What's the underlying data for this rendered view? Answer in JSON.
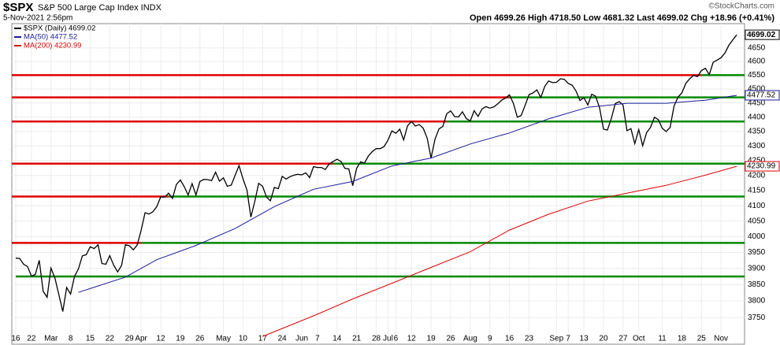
{
  "chart_data": {
    "type": "line",
    "title": "$SPX",
    "subtitle": "S&P 500 Large Cap Index INDX",
    "date": "5-Nov-2021 2:56pm",
    "quote": "Open 4699.26  High 4718.50  Low 4681.32  Last 4699.02  Chg +18.96 (+0.41%)",
    "credit": "©StockCharts.com",
    "log_scale": true,
    "grid": true,
    "xlim": [
      -1,
      186
    ],
    "ylim": [
      3671,
      4741
    ],
    "yticks": [
      3750,
      3800,
      3850,
      3900,
      3950,
      4000,
      4050,
      4100,
      4150,
      4200,
      4250,
      4300,
      4350,
      4400,
      4450,
      4500,
      4550,
      4600,
      4650
    ],
    "xticks": [
      {
        "value": 0,
        "label": "16"
      },
      {
        "value": 4,
        "label": "22"
      },
      {
        "value": 9,
        "label": "Mar"
      },
      {
        "value": 14,
        "label": "8"
      },
      {
        "value": 19,
        "label": "15"
      },
      {
        "value": 24,
        "label": "22"
      },
      {
        "value": 29,
        "label": "29"
      },
      {
        "value": 32,
        "label": "Apr"
      },
      {
        "value": 37,
        "label": "12"
      },
      {
        "value": 42,
        "label": "19"
      },
      {
        "value": 47,
        "label": "26"
      },
      {
        "value": 53,
        "label": "May"
      },
      {
        "value": 58,
        "label": "10"
      },
      {
        "value": 63,
        "label": "17"
      },
      {
        "value": 68,
        "label": "24"
      },
      {
        "value": 73,
        "label": "Jun"
      },
      {
        "value": 77,
        "label": "7"
      },
      {
        "value": 82,
        "label": "14"
      },
      {
        "value": 87,
        "label": "21"
      },
      {
        "value": 92,
        "label": "28"
      },
      {
        "value": 95,
        "label": "Jul"
      },
      {
        "value": 97,
        "label": "6"
      },
      {
        "value": 101,
        "label": "12"
      },
      {
        "value": 106,
        "label": "19"
      },
      {
        "value": 111,
        "label": "26"
      },
      {
        "value": 116,
        "label": "Aug"
      },
      {
        "value": 121,
        "label": "9"
      },
      {
        "value": 126,
        "label": "16"
      },
      {
        "value": 131,
        "label": "23"
      },
      {
        "value": 138,
        "label": "Sep"
      },
      {
        "value": 141,
        "label": "7"
      },
      {
        "value": 145,
        "label": "13"
      },
      {
        "value": 150,
        "label": "20"
      },
      {
        "value": 155,
        "label": "27"
      },
      {
        "value": 159,
        "label": "Oct"
      },
      {
        "value": 165,
        "label": "11"
      },
      {
        "value": 170,
        "label": "18"
      },
      {
        "value": 175,
        "label": "25"
      },
      {
        "value": 180,
        "label": "Nov"
      }
    ],
    "levels": [
      4550,
      4470,
      4385,
      4240,
      4130,
      3980,
      3875
    ],
    "level_colors": [
      "#e00000",
      "#008a00"
    ],
    "series": [
      {
        "name": "$SPX (Daily) 4699.02",
        "color": "#000000",
        "end_label": "4699.02",
        "values": [
          3932,
          3931,
          3913,
          3906,
          3876,
          3881,
          3925,
          3829,
          3811,
          3901,
          3870,
          3819,
          3768,
          3841,
          3821,
          3875,
          3898,
          3939,
          3943,
          3968,
          3962,
          3974,
          3915,
          3913,
          3940,
          3910,
          3889,
          3909,
          3974,
          3971,
          3958,
          3973,
          4020,
          4077,
          4073,
          4080,
          4097,
          4129,
          4128,
          4141,
          4124,
          4170,
          4185,
          4163,
          4135,
          4173,
          4135,
          4180,
          4187,
          4186,
          4183,
          4211,
          4181,
          4192,
          4164,
          4168,
          4201,
          4233,
          4189,
          4152,
          4063,
          4113,
          4174,
          4164,
          4128,
          4116,
          4160,
          4156,
          4197,
          4188,
          4196,
          4201,
          4204,
          4202,
          4209,
          4193,
          4230,
          4227,
          4227,
          4220,
          4239,
          4247,
          4255,
          4247,
          4224,
          4222,
          4166,
          4224,
          4246,
          4242,
          4266,
          4281,
          4291,
          4291,
          4298,
          4320,
          4352,
          4344,
          4358,
          4321,
          4370,
          4385,
          4369,
          4374,
          4361,
          4327,
          4259,
          4323,
          4359,
          4368,
          4412,
          4422,
          4402,
          4401,
          4419,
          4395,
          4387,
          4423,
          4403,
          4429,
          4437,
          4432,
          4436,
          4447,
          4460,
          4468,
          4479,
          4449,
          4400,
          4406,
          4442,
          4480,
          4486,
          4497,
          4470,
          4509,
          4529,
          4523,
          4524,
          4537,
          4535,
          4520,
          4514,
          4493,
          4459,
          4469,
          4443,
          4481,
          4474,
          4433,
          4358,
          4355,
          4395,
          4448,
          4455,
          4443,
          4353,
          4360,
          4308,
          4357,
          4301,
          4346,
          4364,
          4400,
          4391,
          4361,
          4350,
          4364,
          4439,
          4471,
          4486,
          4520,
          4537,
          4549,
          4545,
          4567,
          4575,
          4552,
          4597,
          4605,
          4614,
          4631,
          4660,
          4680,
          4699.02
        ]
      },
      {
        "name": "MA(50) 4477.52",
        "color": "#1a1a9a",
        "end_label": "4477.52",
        "x": [
          16,
          28,
          36,
          46,
          56,
          66,
          76,
          86,
          96,
          106,
          116,
          126,
          136,
          146,
          156,
          166,
          176,
          184
        ],
        "values": [
          3826,
          3873,
          3927,
          3972,
          4026,
          4097,
          4154,
          4180,
          4232,
          4259,
          4307,
          4345,
          4394,
          4435,
          4449,
          4449,
          4460,
          4477.52
        ]
      },
      {
        "name": "MA(200) 4230.99",
        "color": "#e00000",
        "end_label": "4230.99",
        "x": [
          63,
          76,
          86,
          96,
          106,
          116,
          126,
          136,
          146,
          156,
          166,
          176,
          184
        ],
        "values": [
          3694,
          3755,
          3806,
          3854,
          3903,
          3952,
          4021,
          4072,
          4115,
          4141,
          4167,
          4201,
          4230.99
        ]
      }
    ]
  }
}
